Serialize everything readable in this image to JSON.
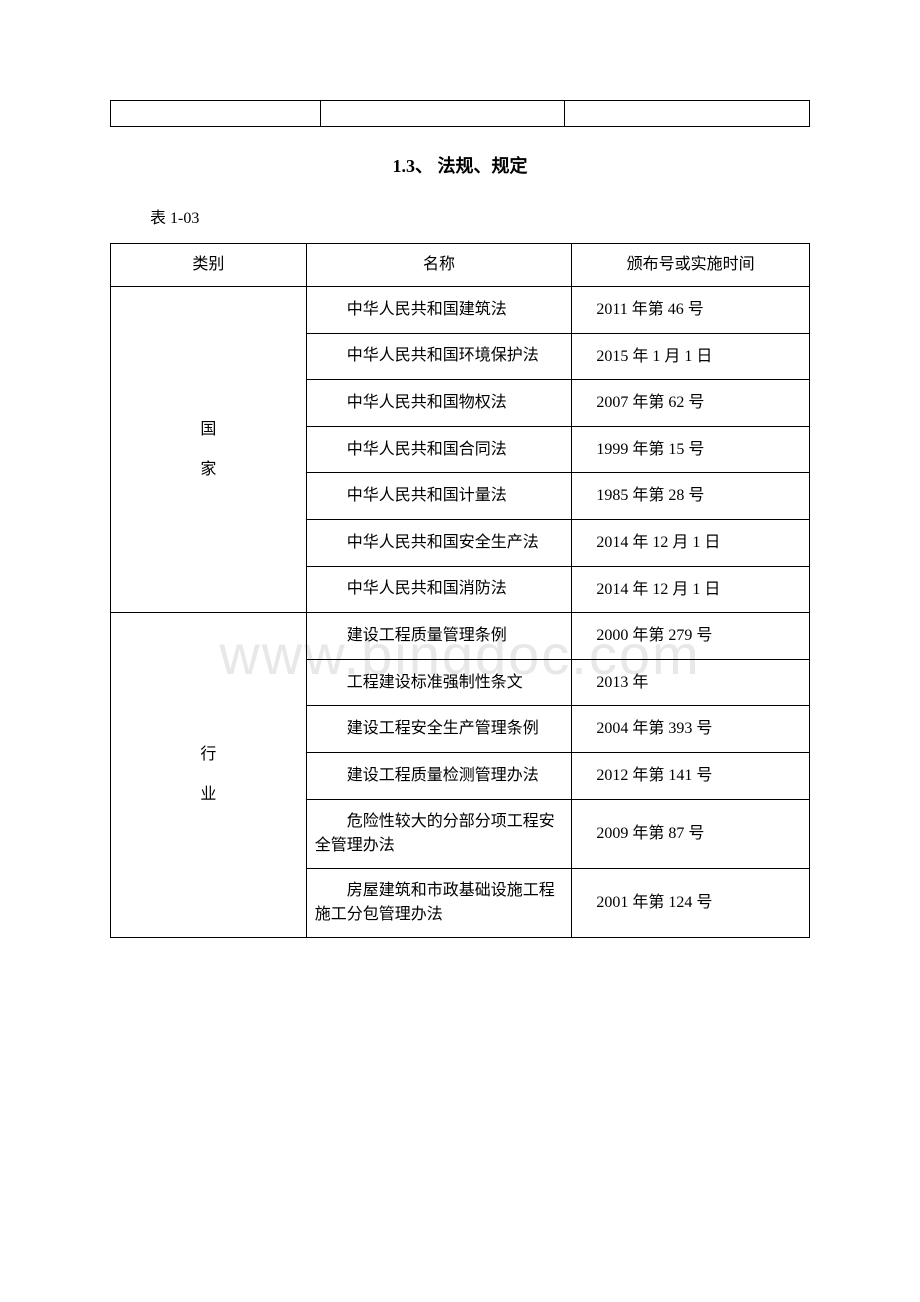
{
  "section": {
    "number": "1.3、",
    "title": "法规、规定"
  },
  "tableLabel": "表 1-03",
  "headers": {
    "category": "类别",
    "name": "名称",
    "date": "颁布号或实施时间"
  },
  "categories": [
    {
      "label": "国\n家",
      "rows": [
        {
          "name": "中华人民共和国建筑法",
          "date": "2011 年第 46 号"
        },
        {
          "name": "中华人民共和国环境保护法",
          "date": "2015 年 1 月 1 日"
        },
        {
          "name": "中华人民共和国物权法",
          "date": "2007 年第 62 号"
        },
        {
          "name": "中华人民共和国合同法",
          "date": "1999 年第 15 号"
        },
        {
          "name": "中华人民共和国计量法",
          "date": "1985 年第 28 号"
        },
        {
          "name": "中华人民共和国安全生产法",
          "date": "2014 年 12 月 1 日"
        },
        {
          "name": "中华人民共和国消防法",
          "date": "2014 年 12 月 1 日"
        }
      ]
    },
    {
      "label": "行\n业",
      "rows": [
        {
          "name": "建设工程质量管理条例",
          "date": "2000 年第 279 号"
        },
        {
          "name": "工程建设标准强制性条文",
          "date": "2013 年"
        },
        {
          "name": "建设工程安全生产管理条例",
          "date": "2004 年第 393 号"
        },
        {
          "name": "建设工程质量检测管理办法",
          "date": "2012 年第 141 号"
        },
        {
          "name": "危险性较大的分部分项工程安全管理办法",
          "date": "2009 年第 87 号"
        },
        {
          "name": "房屋建筑和市政基础设施工程施工分包管理办法",
          "date": "2001 年第 124 号"
        }
      ]
    }
  ],
  "watermark": "www.bingdoc.com",
  "emptyTableCols": [
    30,
    35,
    35
  ]
}
